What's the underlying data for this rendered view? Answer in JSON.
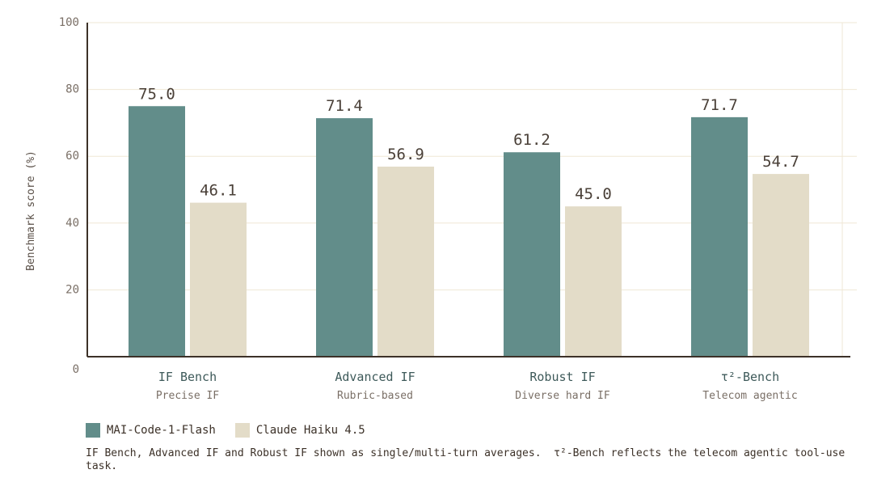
{
  "chart_data": {
    "type": "bar",
    "categories": [
      "IF Bench",
      "Advanced IF",
      "Robust IF",
      "τ²-Bench"
    ],
    "subcategories": [
      "Precise IF",
      "Rubric-based",
      "Diverse hard IF",
      "Telecom agentic"
    ],
    "series": [
      {
        "name": "MAI-Code-1-Flash",
        "values": [
          75.0,
          71.4,
          61.2,
          71.7
        ],
        "color": "#628d8a"
      },
      {
        "name": "Claude Haiku 4.5",
        "values": [
          46.1,
          56.9,
          45.0,
          54.7
        ],
        "color": "#e3dcc8"
      }
    ],
    "title": "",
    "xlabel": "",
    "ylabel": "Benchmark score (%)",
    "ylim": [
      0,
      100
    ],
    "yticks": [
      0,
      20,
      40,
      60,
      80,
      100
    ],
    "grid": true,
    "legend": "bottom-left"
  },
  "footnote": "IF Bench, Advanced IF and Robust IF shown as single/multi-turn averages.  τ²-Bench reflects the telecom agentic tool-use task."
}
